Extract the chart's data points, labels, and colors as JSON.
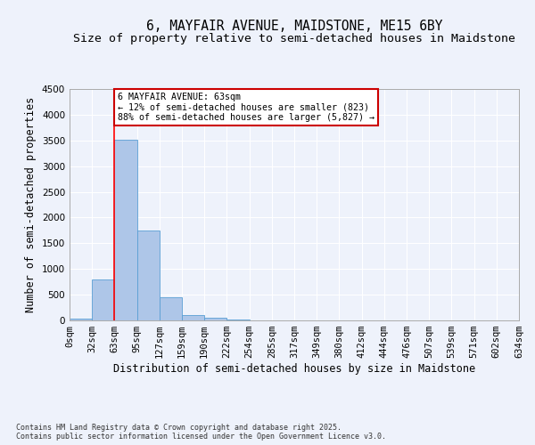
{
  "title": "6, MAYFAIR AVENUE, MAIDSTONE, ME15 6BY",
  "subtitle": "Size of property relative to semi-detached houses in Maidstone",
  "xlabel": "Distribution of semi-detached houses by size in Maidstone",
  "ylabel": "Number of semi-detached properties",
  "bin_labels": [
    "0sqm",
    "32sqm",
    "63sqm",
    "95sqm",
    "127sqm",
    "159sqm",
    "190sqm",
    "222sqm",
    "254sqm",
    "285sqm",
    "317sqm",
    "349sqm",
    "380sqm",
    "412sqm",
    "444sqm",
    "476sqm",
    "507sqm",
    "539sqm",
    "571sqm",
    "602sqm",
    "634sqm"
  ],
  "bar_values": [
    30,
    800,
    3520,
    1750,
    450,
    100,
    60,
    10,
    5,
    0,
    0,
    0,
    0,
    0,
    0,
    0,
    0,
    0,
    0,
    0
  ],
  "bar_color": "#aec6e8",
  "bar_edge_color": "#5a9fd4",
  "red_line_x": 2,
  "annotation_text": "6 MAYFAIR AVENUE: 63sqm\n← 12% of semi-detached houses are smaller (823)\n88% of semi-detached houses are larger (5,827) →",
  "annotation_box_color": "#ffffff",
  "annotation_box_edge_color": "#cc0000",
  "ylim": [
    0,
    4500
  ],
  "footnote": "Contains HM Land Registry data © Crown copyright and database right 2025.\nContains public sector information licensed under the Open Government Licence v3.0.",
  "background_color": "#eef2fb",
  "grid_color": "#ffffff",
  "title_fontsize": 10.5,
  "subtitle_fontsize": 9.5,
  "axis_label_fontsize": 8.5,
  "tick_fontsize": 7.5,
  "footnote_fontsize": 6.0
}
